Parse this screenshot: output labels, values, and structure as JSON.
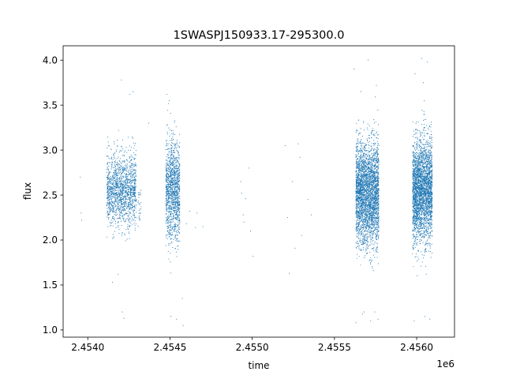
{
  "chart_data": {
    "type": "scatter",
    "title": "1SWASPJ150933.17-295300.0",
    "xlabel": "time",
    "ylabel": "flux",
    "x_offset_label": "1e6",
    "xlim": [
      2453850,
      2456230
    ],
    "ylim": [
      0.92,
      4.16
    ],
    "x_ticks": [
      2454000,
      2454500,
      2455000,
      2455500,
      2456000
    ],
    "x_tick_labels": [
      "2.4540",
      "2.4545",
      "2.4550",
      "2.4555",
      "2.4560"
    ],
    "y_ticks": [
      1.0,
      1.5,
      2.0,
      2.5,
      3.0,
      3.5,
      4.0
    ],
    "y_tick_labels": [
      "1.0",
      "1.5",
      "2.0",
      "2.5",
      "3.0",
      "3.5",
      "4.0"
    ],
    "grid": false,
    "marker_color": "#1f77b4",
    "series": [
      {
        "points": [
          [
            2453955,
            2.7
          ],
          [
            2453960,
            2.3
          ],
          [
            2453962,
            2.22
          ],
          [
            2454150,
            1.53
          ],
          [
            2454185,
            1.62
          ],
          [
            2454205,
            3.78
          ],
          [
            2454210,
            1.2
          ],
          [
            2454220,
            1.13
          ],
          [
            2454255,
            3.62
          ],
          [
            2454275,
            3.65
          ],
          [
            2454370,
            3.3
          ],
          [
            2454480,
            3.62
          ],
          [
            2454495,
            3.55
          ],
          [
            2454505,
            1.15
          ],
          [
            2454540,
            1.12
          ],
          [
            2454575,
            1.35
          ],
          [
            2454580,
            1.05
          ],
          [
            2454600,
            2.18
          ],
          [
            2454620,
            2.32
          ],
          [
            2454655,
            2.14
          ],
          [
            2454665,
            2.3
          ],
          [
            2454700,
            2.15
          ],
          [
            2454930,
            2.65
          ],
          [
            2454935,
            2.52
          ],
          [
            2454945,
            2.28
          ],
          [
            2454950,
            2.2
          ],
          [
            2454960,
            2.46
          ],
          [
            2454980,
            2.8
          ],
          [
            2454990,
            2.1
          ],
          [
            2455005,
            1.82
          ],
          [
            2455200,
            3.05
          ],
          [
            2455215,
            2.25
          ],
          [
            2455225,
            1.63
          ],
          [
            2455245,
            2.65
          ],
          [
            2455260,
            1.91
          ],
          [
            2455280,
            3.07
          ],
          [
            2455290,
            2.92
          ],
          [
            2455300,
            2.05
          ],
          [
            2455340,
            2.45
          ],
          [
            2455360,
            2.28
          ],
          [
            2455620,
            3.9
          ],
          [
            2455630,
            1.08
          ],
          [
            2455660,
            3.65
          ],
          [
            2455680,
            1.2
          ],
          [
            2455705,
            4.0
          ],
          [
            2455720,
            1.1
          ],
          [
            2455745,
            1.2
          ],
          [
            2455765,
            1.12
          ],
          [
            2455985,
            1.1
          ],
          [
            2455990,
            3.85
          ],
          [
            2456030,
            4.02
          ],
          [
            2456040,
            3.75
          ],
          [
            2456050,
            1.15
          ],
          [
            2456065,
            3.98
          ],
          [
            2456080,
            1.12
          ]
        ],
        "clusters": [
          {
            "x_range": [
              2454115,
              2454295
            ],
            "center": 2.55,
            "spread": 0.2,
            "count": 1500
          },
          {
            "x_range": [
              2454305,
              2454325
            ],
            "center": 2.38,
            "spread": 0.12,
            "count": 30
          },
          {
            "x_range": [
              2454475,
              2454560
            ],
            "center": 2.55,
            "spread": 0.27,
            "count": 1300
          },
          {
            "x_range": [
              2455630,
              2455770
            ],
            "center": 2.52,
            "spread": 0.28,
            "count": 3200
          },
          {
            "x_range": [
              2455975,
              2456095
            ],
            "center": 2.55,
            "spread": 0.28,
            "count": 3000
          }
        ]
      }
    ]
  }
}
